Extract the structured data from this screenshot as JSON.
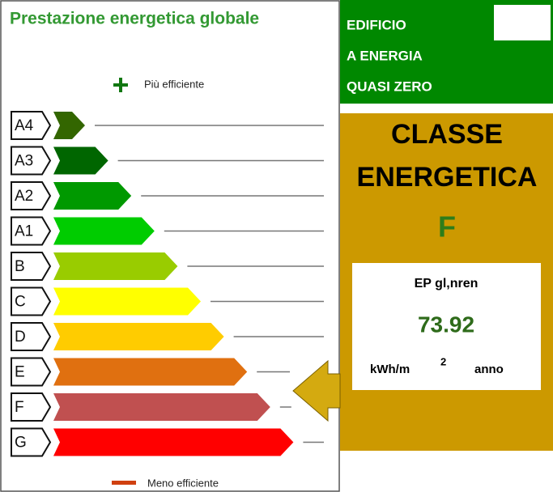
{
  "header": {
    "title": "Prestazione energetica globale",
    "nzeb": [
      "EDIFICIO",
      "A ENERGIA",
      "QUASI ZERO"
    ]
  },
  "scale": {
    "top_label": "Più efficiente",
    "bottom_label": "Meno efficiente",
    "classes": [
      {
        "label": "A4",
        "color": "#336600"
      },
      {
        "label": "A3",
        "color": "#006600"
      },
      {
        "label": "A2",
        "color": "#009900"
      },
      {
        "label": "A1",
        "color": "#00cc00"
      },
      {
        "label": "B",
        "color": "#99cc00"
      },
      {
        "label": "C",
        "color": "#ffff00"
      },
      {
        "label": "D",
        "color": "#ffcc00"
      },
      {
        "label": "E",
        "color": "#e07010"
      },
      {
        "label": "F",
        "color": "#c05050"
      },
      {
        "label": "G",
        "color": "#ff0000"
      }
    ]
  },
  "result": {
    "heading": [
      "CLASSE",
      "ENERGETICA"
    ],
    "class": "F",
    "indicator": "EP gl,nren",
    "value": "73.92",
    "unit": "kWh/m",
    "unit_exp": "2",
    "unit_tail": "anno"
  }
}
